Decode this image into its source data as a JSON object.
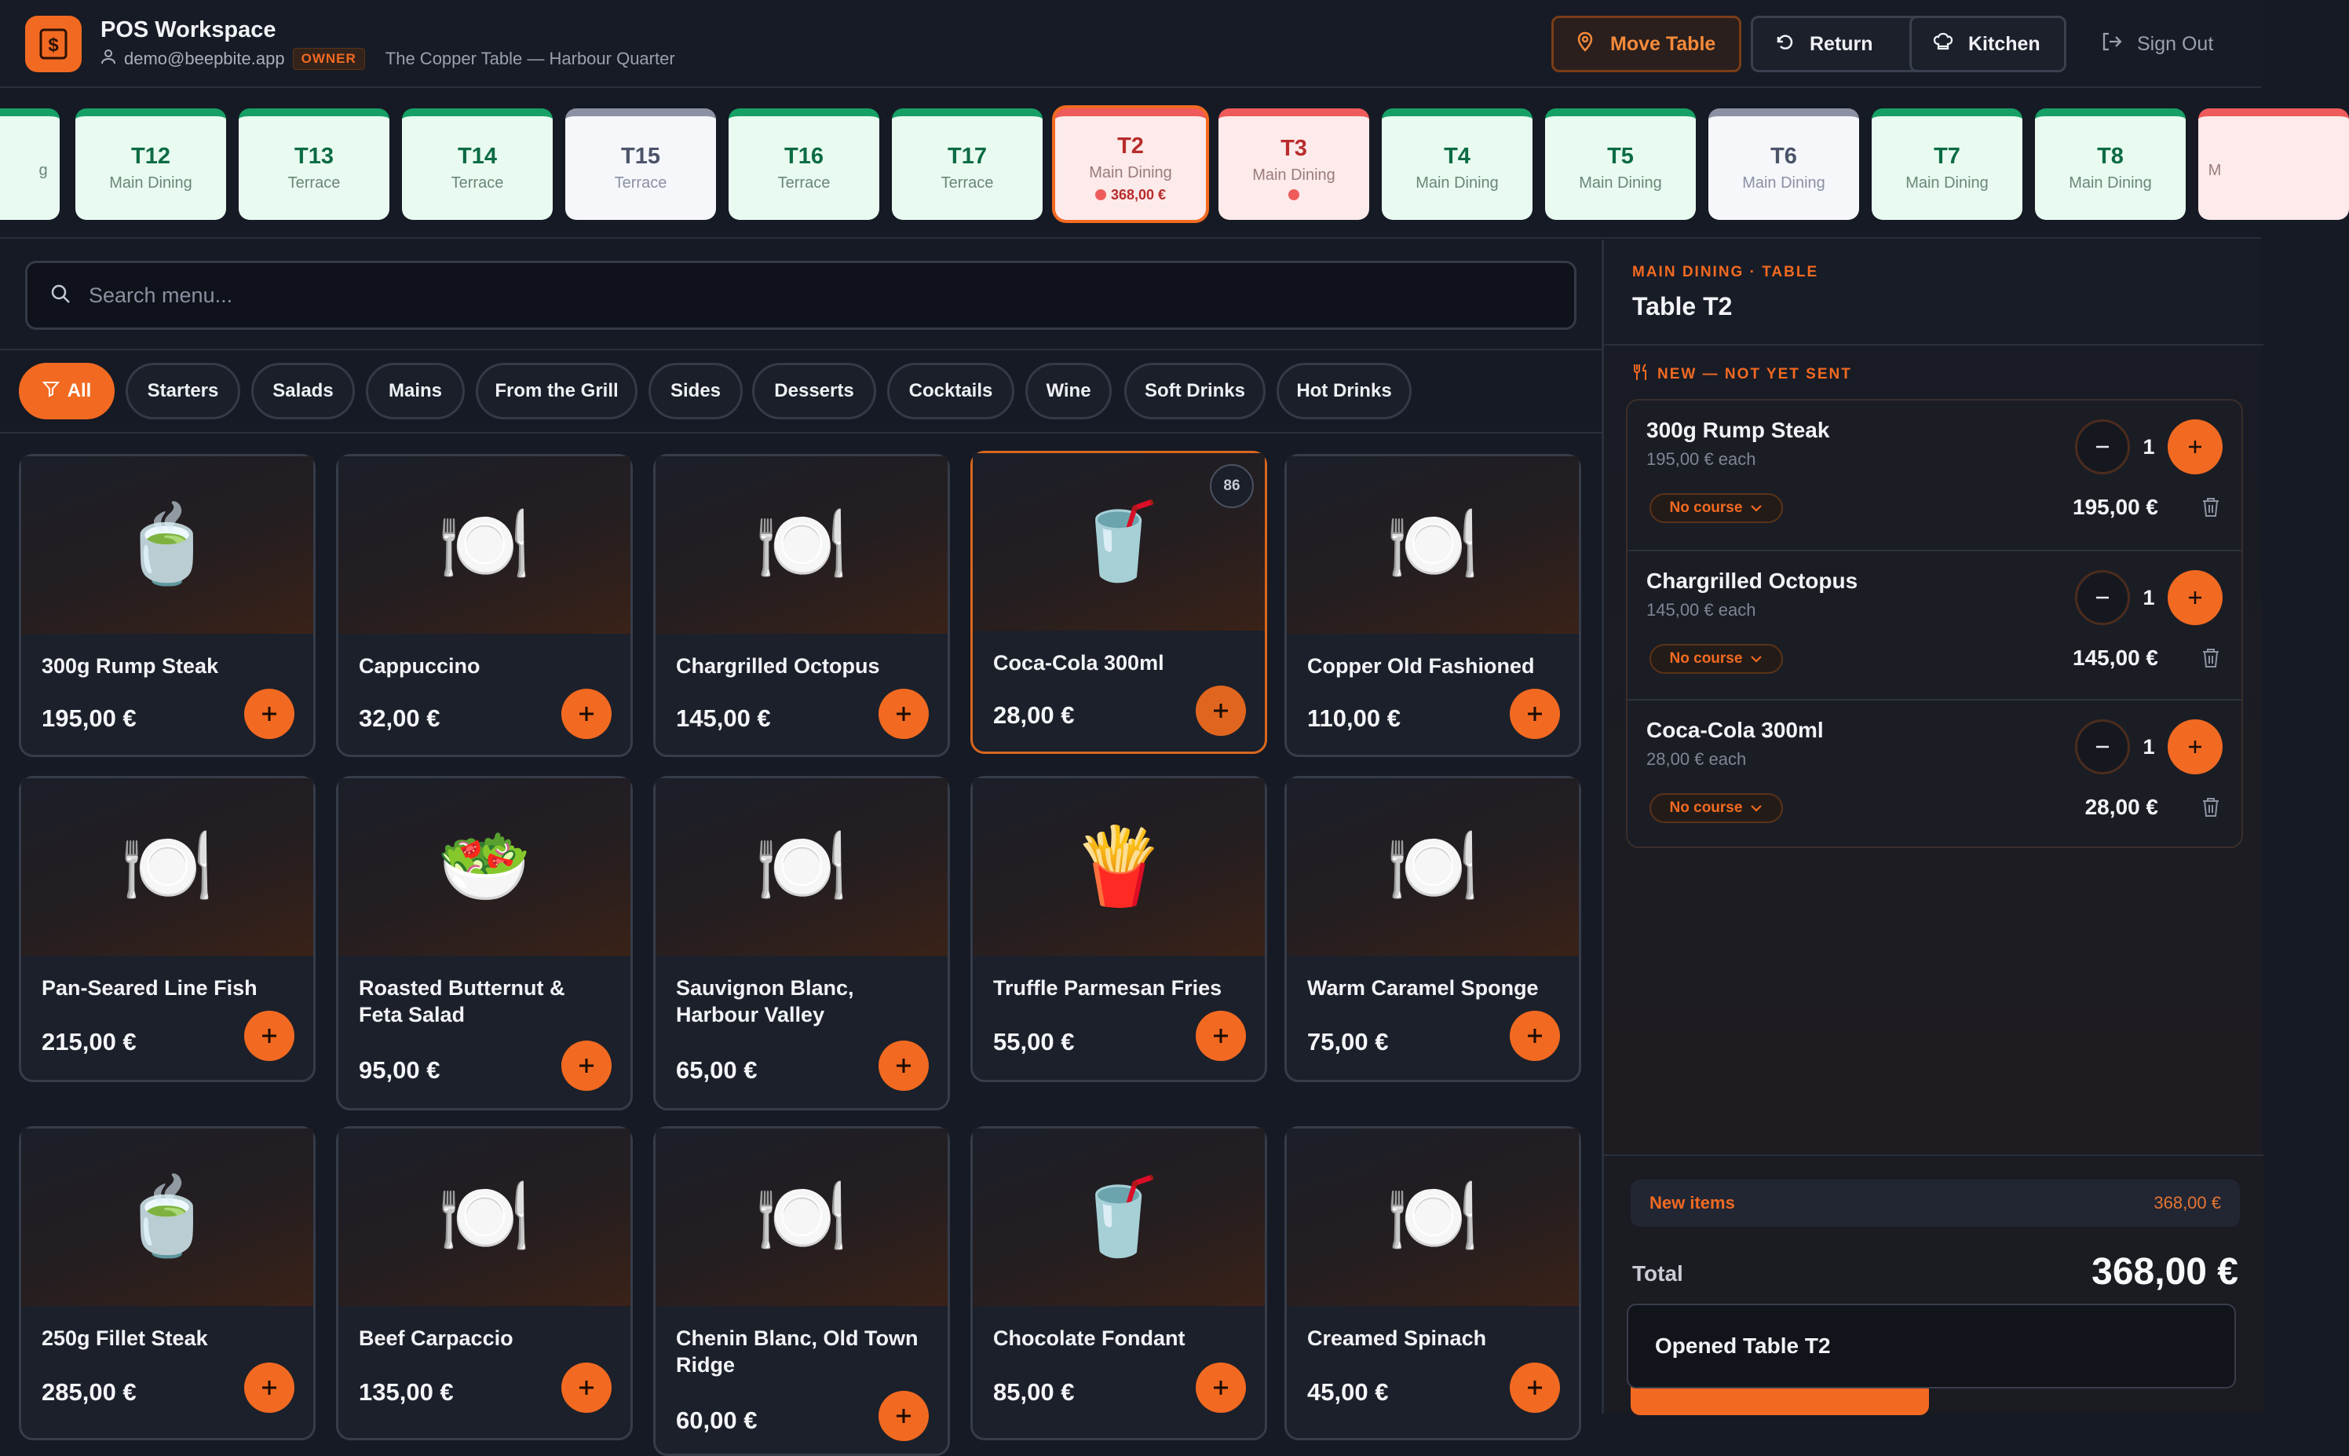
{
  "header": {
    "app_title": "POS Workspace",
    "user_email": "demo@beepbite.app",
    "role": "OWNER",
    "venue": "The Copper Table — Harbour Quarter",
    "buttons": {
      "move": "Move Table",
      "return": "Return",
      "kitchen": "Kitchen",
      "signout": "Sign Out"
    }
  },
  "tables": [
    {
      "name": "",
      "zone": "g",
      "status": "available"
    },
    {
      "name": "T12",
      "zone": "Main Dining",
      "status": "available"
    },
    {
      "name": "T13",
      "zone": "Terrace",
      "status": "available"
    },
    {
      "name": "T14",
      "zone": "Terrace",
      "status": "available"
    },
    {
      "name": "T15",
      "zone": "Terrace",
      "status": "idle"
    },
    {
      "name": "T16",
      "zone": "Terrace",
      "status": "available"
    },
    {
      "name": "T17",
      "zone": "Terrace",
      "status": "available"
    },
    {
      "name": "T2",
      "zone": "Main Dining",
      "status": "occupied",
      "amount": "368,00 €",
      "selected": true
    },
    {
      "name": "T3",
      "zone": "Main Dining",
      "status": "occupied",
      "amount": ""
    },
    {
      "name": "T4",
      "zone": "Main Dining",
      "status": "available"
    },
    {
      "name": "T5",
      "zone": "Main Dining",
      "status": "available"
    },
    {
      "name": "T6",
      "zone": "Main Dining",
      "status": "idle"
    },
    {
      "name": "T7",
      "zone": "Main Dining",
      "status": "available"
    },
    {
      "name": "T8",
      "zone": "Main Dining",
      "status": "available"
    },
    {
      "name": "",
      "zone": "M",
      "status": "occupied"
    }
  ],
  "search": {
    "placeholder": "Search menu..."
  },
  "categories": [
    "All",
    "Starters",
    "Salads",
    "Mains",
    "From the Grill",
    "Sides",
    "Desserts",
    "Cocktails",
    "Wine",
    "Soft Drinks",
    "Hot Drinks"
  ],
  "menu": [
    {
      "name": "300g Rump Steak",
      "price": "195,00 €",
      "icon": "🍵"
    },
    {
      "name": "Cappuccino",
      "price": "32,00 €",
      "icon": "🍽️"
    },
    {
      "name": "Chargrilled Octopus",
      "price": "145,00 €",
      "icon": "🍽️"
    },
    {
      "name": "Coca-Cola 300ml",
      "price": "28,00 €",
      "icon": "🥤",
      "badge": "86",
      "selected": true
    },
    {
      "name": "Copper Old Fashioned",
      "price": "110,00 €",
      "icon": "🍽️"
    },
    {
      "name": "Pan-Seared Line Fish",
      "price": "215,00 €",
      "icon": "🍽️"
    },
    {
      "name": "Roasted Butternut & Feta Salad",
      "price": "95,00 €",
      "icon": "🥗"
    },
    {
      "name": "Sauvignon Blanc, Harbour Valley",
      "price": "65,00 €",
      "icon": "🍽️"
    },
    {
      "name": "Truffle Parmesan Fries",
      "price": "55,00 €",
      "icon": "🍟"
    },
    {
      "name": "Warm Caramel Sponge",
      "price": "75,00 €",
      "icon": "🍽️"
    },
    {
      "name": "250g Fillet Steak",
      "price": "285,00 €",
      "icon": "🍵"
    },
    {
      "name": "Beef Carpaccio",
      "price": "135,00 €",
      "icon": "🍽️"
    },
    {
      "name": "Chenin Blanc, Old Town Ridge",
      "price": "60,00 €",
      "icon": "🍽️"
    },
    {
      "name": "Chocolate Fondant",
      "price": "85,00 €",
      "icon": "🥤"
    },
    {
      "name": "Creamed Spinach",
      "price": "45,00 €",
      "icon": "🍽️"
    }
  ],
  "order": {
    "kicker": "MAIN DINING · TABLE",
    "title": "Table T2",
    "section": "NEW — NOT YET SENT",
    "items": [
      {
        "name": "300g Rump Steak",
        "each": "195,00 € each",
        "qty": "1",
        "course": "No course",
        "total": "195,00 €"
      },
      {
        "name": "Chargrilled Octopus",
        "each": "145,00 € each",
        "qty": "1",
        "course": "No course",
        "total": "145,00 €"
      },
      {
        "name": "Coca-Cola 300ml",
        "each": "28,00 € each",
        "qty": "1",
        "course": "No course",
        "total": "28,00 €"
      }
    ],
    "new_items_label": "New items",
    "new_items_value": "368,00 €",
    "total_label": "Total",
    "total_value": "368,00 €"
  },
  "toast": "Opened Table T2",
  "colors": {
    "accent": "#f26a21",
    "available": "#16a065",
    "occupied": "#ef5b5b",
    "idle": "#8b90a3"
  }
}
